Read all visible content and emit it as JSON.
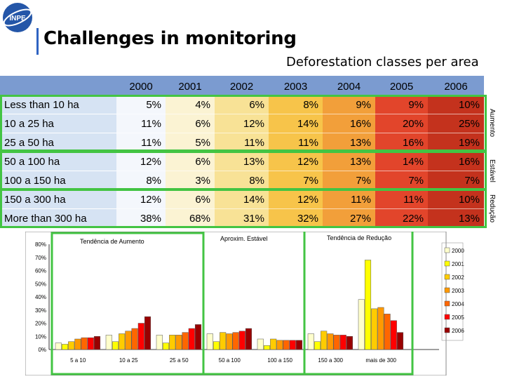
{
  "header": {
    "logo_text": "INPE",
    "title": "Challenges in monitoring",
    "subtitle": "Deforestation classes per area"
  },
  "table": {
    "years": [
      "2000",
      "2001",
      "2002",
      "2003",
      "2004",
      "2005",
      "2006"
    ],
    "rows": [
      {
        "label": "Less than 10 ha",
        "values": [
          "5%",
          "4%",
          "6%",
          "8%",
          "9%",
          "9%",
          "10%"
        ]
      },
      {
        "label": "10 a 25 ha",
        "values": [
          "11%",
          "6%",
          "12%",
          "14%",
          "16%",
          "20%",
          "25%"
        ]
      },
      {
        "label": "25 a 50 ha",
        "values": [
          "11%",
          "5%",
          "11%",
          "11%",
          "13%",
          "16%",
          "19%"
        ]
      },
      {
        "label": "50 a 100 ha",
        "values": [
          "12%",
          "6%",
          "13%",
          "12%",
          "13%",
          "14%",
          "16%"
        ]
      },
      {
        "label": "100 a 150 ha",
        "values": [
          "8%",
          "3%",
          "8%",
          "7%",
          "7%",
          "7%",
          "7%"
        ]
      },
      {
        "label": "150 a 300 ha",
        "values": [
          "12%",
          "6%",
          "14%",
          "12%",
          "11%",
          "11%",
          "10%"
        ]
      },
      {
        "label": "More than 300 ha",
        "values": [
          "38%",
          "68%",
          "31%",
          "32%",
          "27%",
          "22%",
          "13%"
        ]
      }
    ],
    "side_labels": [
      "Aumento",
      "Estável",
      "Redução"
    ]
  },
  "colors": {
    "header_bg": "#7b9bd0",
    "label_bg": "#d6e3f3",
    "year_fills": [
      "#f4f7fc",
      "#fbf3d3",
      "#f8e296",
      "#f7c44a",
      "#f29f3a",
      "#e2452b",
      "#c4321d"
    ],
    "green": "#43c443"
  },
  "chart_data": {
    "type": "bar",
    "categories": [
      "5 a 10",
      "10 a 25",
      "25 a 50",
      "50 a 100",
      "100 a 150",
      "150 a 300",
      "mais de 300"
    ],
    "series": [
      {
        "name": "2000",
        "values": [
          5,
          11,
          11,
          12,
          8,
          12,
          38
        ]
      },
      {
        "name": "2001",
        "values": [
          4,
          6,
          5,
          6,
          3,
          6,
          68
        ]
      },
      {
        "name": "2002",
        "values": [
          6,
          12,
          11,
          13,
          8,
          14,
          31
        ]
      },
      {
        "name": "2003",
        "values": [
          8,
          14,
          11,
          12,
          7,
          12,
          32
        ]
      },
      {
        "name": "2004",
        "values": [
          9,
          16,
          13,
          13,
          7,
          11,
          27
        ]
      },
      {
        "name": "2005",
        "values": [
          9,
          20,
          16,
          14,
          7,
          11,
          22
        ]
      },
      {
        "name": "2006",
        "values": [
          10,
          25,
          19,
          16,
          7,
          10,
          13
        ]
      }
    ],
    "series_colors": [
      "#ffffcc",
      "#ffff00",
      "#ffcc00",
      "#ff9900",
      "#ff6600",
      "#ff0000",
      "#990000"
    ],
    "ylim": [
      0,
      80
    ],
    "yticks": [
      "0%",
      "10%",
      "20%",
      "30%",
      "40%",
      "50%",
      "60%",
      "70%",
      "80%"
    ],
    "annotations": [
      "Tendência de Aumento",
      "Aproxim. Estável",
      "Tendência de Redução"
    ],
    "legend_position": "right",
    "grid": false
  }
}
